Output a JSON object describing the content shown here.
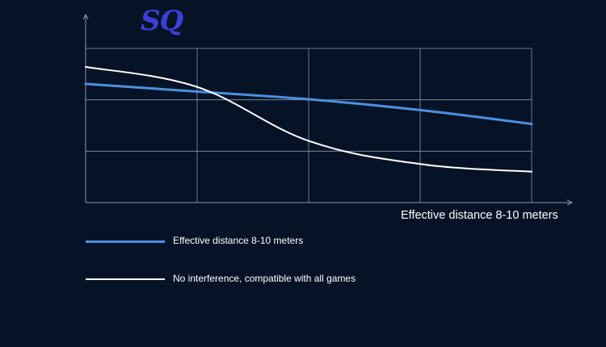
{
  "logo": {
    "text": "SQ"
  },
  "colors": {
    "background": "#061326",
    "grid": "#8a96a8",
    "blue": "#4a8fe0",
    "white": "#ffffff"
  },
  "chart_data": {
    "type": "line",
    "xlabel": "Effective distance 8-10 meters",
    "ylabel": "",
    "x": [
      0,
      0.25,
      0.5,
      0.75,
      1
    ],
    "xlim": [
      0,
      1
    ],
    "ylim": [
      0,
      1
    ],
    "grid": true,
    "legend_position": "bottom-left",
    "series": [
      {
        "name": "Effective distance 8-10 meters",
        "color": "#4a8fe0",
        "values": [
          0.77,
          0.72,
          0.67,
          0.6,
          0.51
        ]
      },
      {
        "name": "No interference, compatible with all games",
        "color": "#ffffff",
        "values": [
          0.88,
          0.75,
          0.4,
          0.25,
          0.2
        ]
      }
    ]
  }
}
